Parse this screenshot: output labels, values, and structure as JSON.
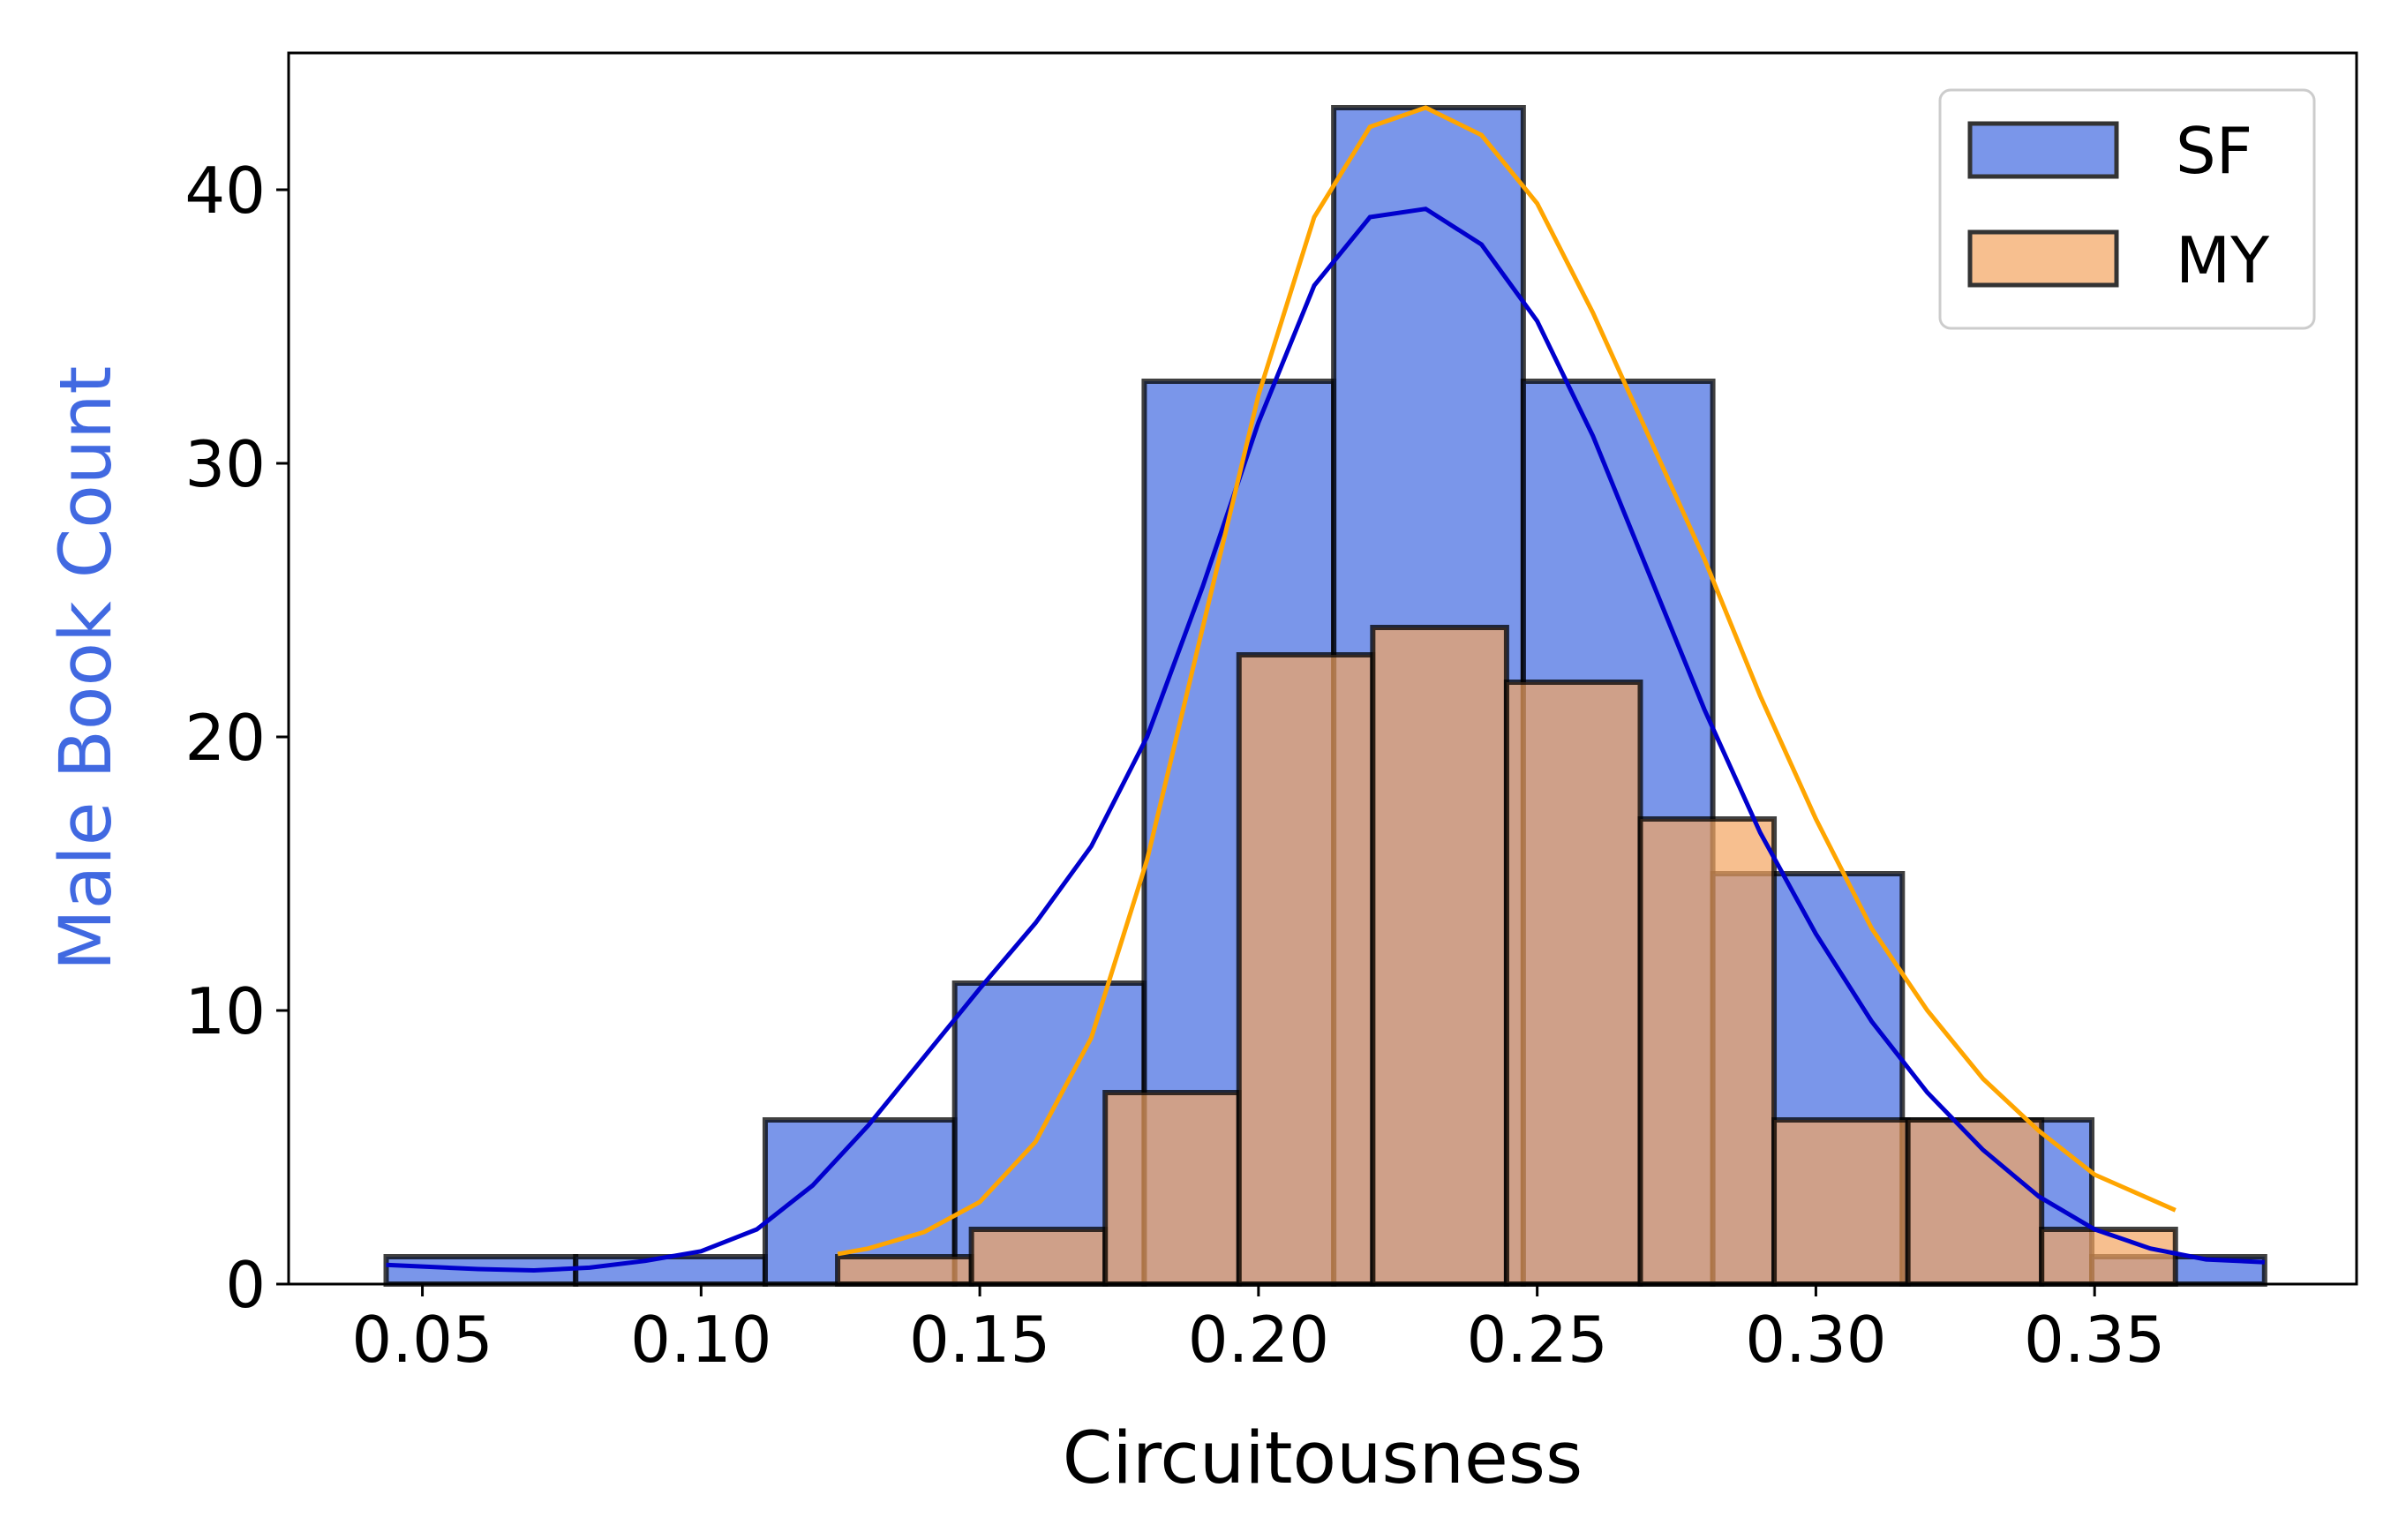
{
  "chart_data": {
    "type": "bar",
    "title": "",
    "xlabel": "Circuitousness",
    "ylabel": "Male Book Count",
    "xlim": [
      0.026,
      0.397
    ],
    "ylim": [
      0,
      45
    ],
    "xticks": [
      "0.05",
      "0.10",
      "0.15",
      "0.20",
      "0.25",
      "0.30",
      "0.35"
    ],
    "xtick_values": [
      0.05,
      0.1,
      0.15,
      0.2,
      0.25,
      0.3,
      0.35
    ],
    "yticks": [
      "0",
      "10",
      "20",
      "30",
      "40"
    ],
    "ytick_values": [
      0,
      10,
      20,
      30,
      40
    ],
    "grid": false,
    "legend_placement": "top-right",
    "colors": {
      "sf_fill": "#4169e1",
      "my_fill": "#f4a460",
      "sf_line": "#0000cd",
      "my_line": "#ffa500",
      "ylabel": "#4169e1",
      "edge": "#000000"
    },
    "series": [
      {
        "name": "SF",
        "bin_edges": [
          0.0435,
          0.0775,
          0.1115,
          0.1455,
          0.1795,
          0.2135,
          0.2475,
          0.2815,
          0.3155,
          0.3495,
          0.3805
        ],
        "counts": [
          1,
          1,
          6,
          11,
          33,
          43,
          33,
          15,
          6,
          1
        ],
        "kde_x": [
          0.0435,
          0.06,
          0.07,
          0.08,
          0.09,
          0.1,
          0.11,
          0.12,
          0.13,
          0.14,
          0.15,
          0.16,
          0.17,
          0.18,
          0.19,
          0.2,
          0.21,
          0.22,
          0.23,
          0.24,
          0.25,
          0.26,
          0.27,
          0.28,
          0.29,
          0.3,
          0.31,
          0.32,
          0.33,
          0.34,
          0.35,
          0.36,
          0.37,
          0.3805
        ],
        "kde_y": [
          0.7,
          0.55,
          0.5,
          0.6,
          0.85,
          1.2,
          2.0,
          3.6,
          5.8,
          8.3,
          10.8,
          13.2,
          16.0,
          20.0,
          25.5,
          31.5,
          36.5,
          39.0,
          39.3,
          38.0,
          35.2,
          31.0,
          26.0,
          21.0,
          16.5,
          12.8,
          9.6,
          7.0,
          4.9,
          3.2,
          2.0,
          1.3,
          0.9,
          0.8
        ]
      },
      {
        "name": "MY",
        "bin_edges": [
          0.1245,
          0.1485,
          0.1725,
          0.1965,
          0.2205,
          0.2445,
          0.2685,
          0.2925,
          0.3165,
          0.3405,
          0.3645
        ],
        "counts": [
          1,
          2,
          7,
          23,
          24,
          22,
          17,
          6,
          6,
          2
        ],
        "kde_x": [
          0.1245,
          0.13,
          0.14,
          0.15,
          0.16,
          0.17,
          0.18,
          0.19,
          0.2,
          0.21,
          0.22,
          0.23,
          0.24,
          0.25,
          0.26,
          0.27,
          0.28,
          0.29,
          0.3,
          0.31,
          0.32,
          0.33,
          0.34,
          0.35,
          0.3645
        ],
        "kde_y": [
          1.1,
          1.3,
          1.9,
          3.0,
          5.2,
          9.0,
          15.5,
          24.0,
          32.5,
          39.0,
          42.3,
          43.0,
          42.0,
          39.5,
          35.5,
          31.0,
          26.5,
          21.5,
          17.0,
          13.0,
          10.0,
          7.5,
          5.6,
          4.0,
          2.7
        ]
      }
    ]
  }
}
